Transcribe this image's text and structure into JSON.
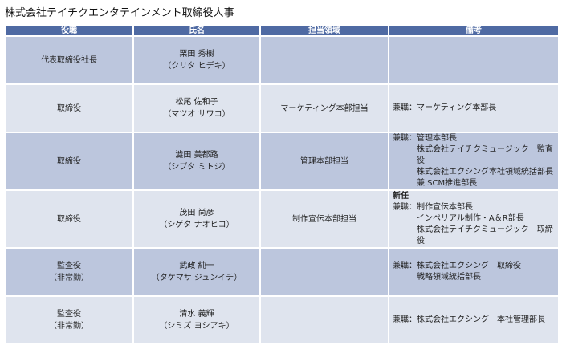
{
  "title": "株式会社テイチクエンタテインメント取締役人事",
  "headers": [
    "役職",
    "氏名",
    "担当領域",
    "備考"
  ],
  "rows": [
    {
      "role": [
        "代表取締役社長"
      ],
      "name": "栗田 秀樹",
      "kana": "（クリタ ヒデキ）",
      "area": "",
      "new": "",
      "notes": []
    },
    {
      "role": [
        "取締役"
      ],
      "name": "松尾 佐和子",
      "kana": "（マツオ サワコ）",
      "area": "マーケティング本部担当",
      "new": "",
      "notes": [
        "兼職：マーケティング本部長"
      ]
    },
    {
      "role": [
        "取締役"
      ],
      "name": "澁田 美都路",
      "kana": "（シブタ ミトジ）",
      "area": "管理本部担当",
      "new": "",
      "notes": [
        "兼職：管理本部長",
        "株式会社テイチクミュージック　監査役",
        "株式会社エクシング本社領域統括部長",
        "兼 SCM推進部長"
      ]
    },
    {
      "role": [
        "取締役"
      ],
      "name": "茂田 尚彦",
      "kana": "（シゲタ ナオヒコ）",
      "area": "制作宣伝本部担当",
      "new": "新任",
      "notes": [
        "兼職：制作宣伝本部長",
        "インペリアル制作・A＆R部長",
        "株式会社テイチクミュージック　取締役"
      ]
    },
    {
      "role": [
        "監査役",
        "（非常勤）"
      ],
      "name": "武政 純一",
      "kana": "（タケマサ ジュンイチ）",
      "area": "",
      "new": "",
      "notes": [
        "兼職：株式会社エクシング　取締役",
        "戦略領域統括部長"
      ]
    },
    {
      "role": [
        "監査役",
        "（非常勤）"
      ],
      "name": "清水 義輝",
      "kana": "（シミズ ヨシアキ）",
      "area": "",
      "new": "",
      "notes": [
        "兼職：株式会社エクシング　本社管理部長"
      ]
    }
  ]
}
